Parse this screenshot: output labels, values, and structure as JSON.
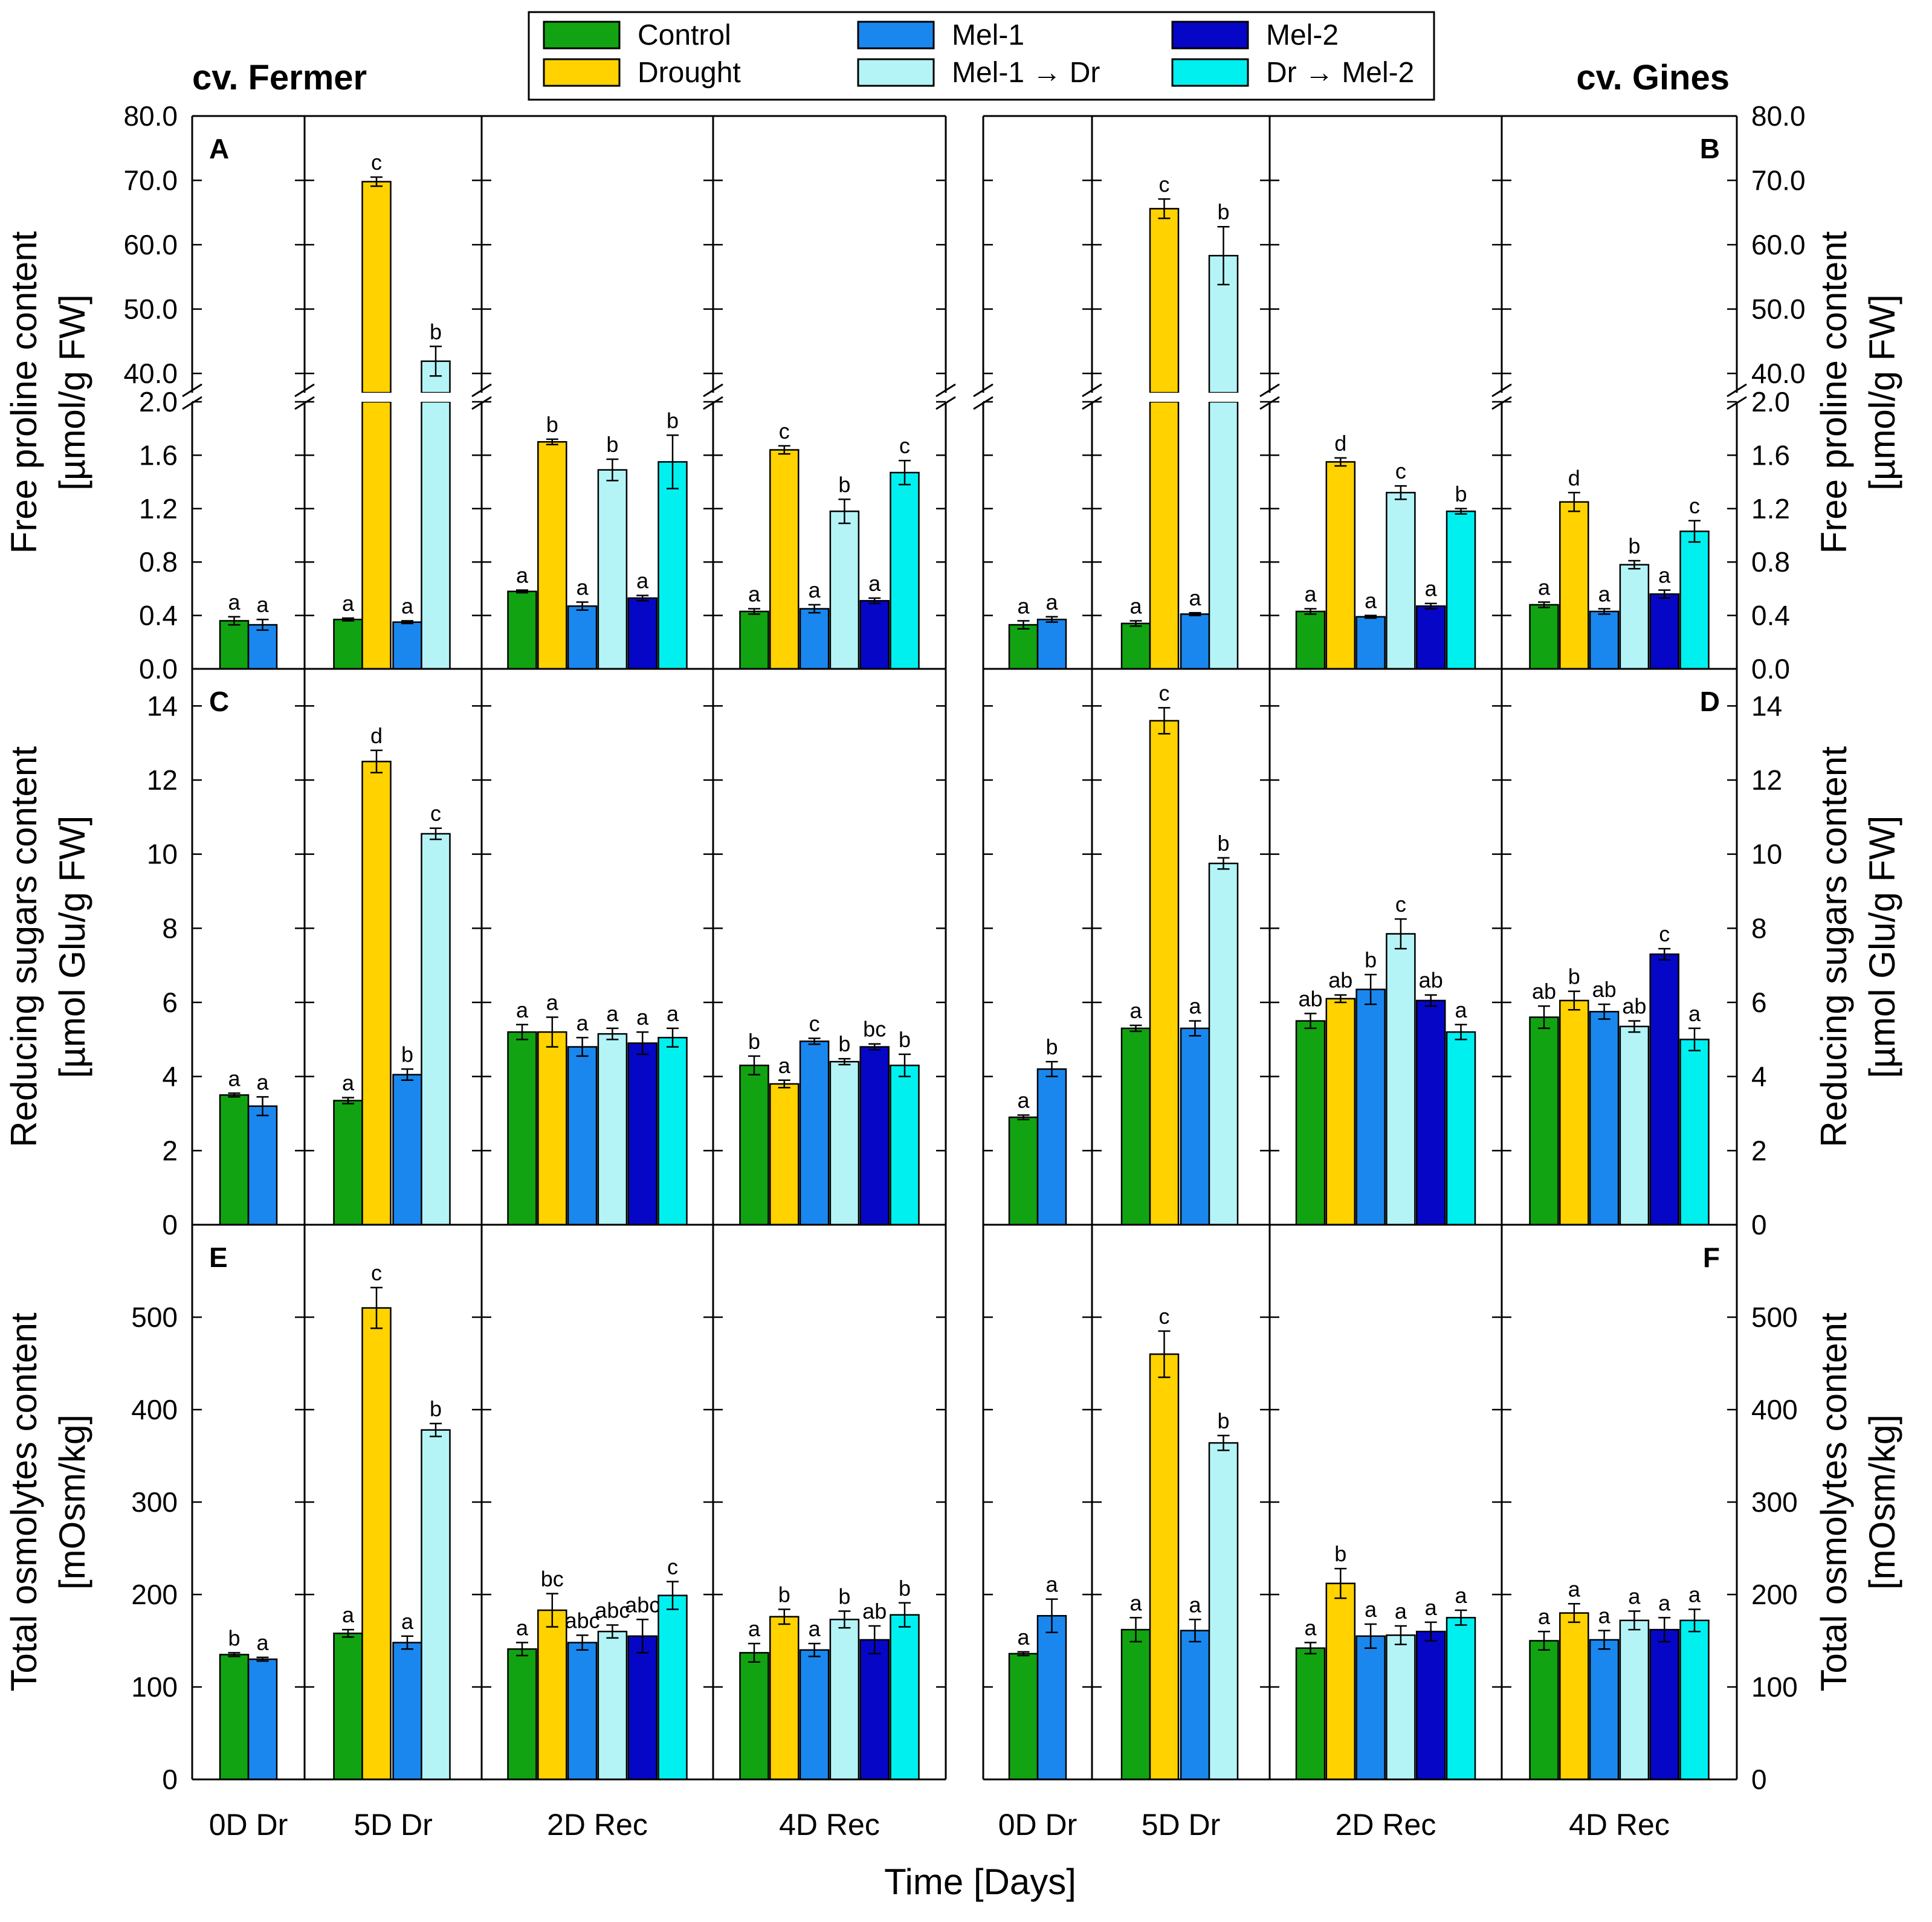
{
  "chart_data": {
    "type": "bar",
    "title": "",
    "xlabel": "Time [Days]",
    "groups": [
      "0D Dr",
      "5D Dr",
      "2D Rec",
      "4D Rec"
    ],
    "cultivars": [
      "cv. Fermer",
      "cv. Gines"
    ],
    "legend": [
      {
        "key": "Control",
        "label": "Control",
        "color": "#12a312"
      },
      {
        "key": "Drought",
        "label": "Drought",
        "color": "#ffd200"
      },
      {
        "key": "Mel1",
        "label": "Mel-1",
        "color": "#1a87ee"
      },
      {
        "key": "Mel1Dr",
        "label": "Mel-1 → Dr",
        "color": "#b4f4f7"
      },
      {
        "key": "Mel2",
        "label": "Mel-2",
        "color": "#0606c7"
      },
      {
        "key": "DrMel2",
        "label": "Dr → Mel-2",
        "color": "#00f0f0"
      }
    ],
    "rows": [
      {
        "ylabel_line1": "Free proline content",
        "ylabel_line2": "[µmol/g FW]",
        "broken_axis": true,
        "lower_ticks": [
          "0.0",
          "0.4",
          "0.8",
          "1.2",
          "1.6",
          "2.0"
        ],
        "upper_ticks": [
          "40.0",
          "50.0",
          "60.0",
          "70.0",
          "80.0"
        ],
        "lower_range": [
          0,
          2.0
        ],
        "upper_range": [
          37,
          80
        ]
      },
      {
        "ylabel_line1": "Reducing sugars content",
        "ylabel_line2": "[µmol Glu/g FW]",
        "broken_axis": false,
        "ticks": [
          "0",
          "2",
          "4",
          "6",
          "8",
          "10",
          "12",
          "14"
        ],
        "range": [
          0,
          15
        ]
      },
      {
        "ylabel_line1": "Total osmolytes content",
        "ylabel_line2": "[mOsm/kg]",
        "broken_axis": false,
        "ticks": [
          "0",
          "100",
          "200",
          "300",
          "400",
          "500"
        ],
        "range": [
          0,
          600
        ]
      }
    ],
    "panels": [
      {
        "letter": "A",
        "row": 0,
        "col": 0,
        "groups": [
          [
            [
              "Control",
              0.36,
              0.03,
              "a"
            ],
            [
              "Mel1",
              0.33,
              0.04,
              "a"
            ]
          ],
          [
            [
              "Control",
              0.37,
              0.01,
              "a"
            ],
            [
              "Drought",
              69.8,
              0.7,
              "c"
            ],
            [
              "Mel1",
              0.35,
              0.01,
              "a"
            ],
            [
              "Mel1Dr",
              41.9,
              2.3,
              "b"
            ]
          ],
          [
            [
              "Control",
              0.58,
              0.01,
              "a"
            ],
            [
              "Drought",
              1.7,
              0.02,
              "b"
            ],
            [
              "Mel1",
              0.47,
              0.03,
              "a"
            ],
            [
              "Mel1Dr",
              1.49,
              0.08,
              "b"
            ],
            [
              "Mel2",
              0.53,
              0.02,
              "a"
            ],
            [
              "DrMel2",
              1.55,
              0.2,
              "b"
            ]
          ],
          [
            [
              "Control",
              0.43,
              0.02,
              "a"
            ],
            [
              "Drought",
              1.64,
              0.03,
              "c"
            ],
            [
              "Mel1",
              0.45,
              0.03,
              "a"
            ],
            [
              "Mel1Dr",
              1.18,
              0.09,
              "b"
            ],
            [
              "Mel2",
              0.51,
              0.02,
              "a"
            ],
            [
              "DrMel2",
              1.47,
              0.09,
              "c"
            ]
          ]
        ]
      },
      {
        "letter": "B",
        "row": 0,
        "col": 1,
        "groups": [
          [
            [
              "Control",
              0.33,
              0.03,
              "a"
            ],
            [
              "Mel1",
              0.37,
              0.02,
              "a"
            ]
          ],
          [
            [
              "Control",
              0.34,
              0.02,
              "a"
            ],
            [
              "Drought",
              65.6,
              1.5,
              "c"
            ],
            [
              "Mel1",
              0.41,
              0.01,
              "a"
            ],
            [
              "Mel1Dr",
              58.3,
              4.5,
              "b"
            ]
          ],
          [
            [
              "Control",
              0.43,
              0.02,
              "a"
            ],
            [
              "Drought",
              1.55,
              0.03,
              "d"
            ],
            [
              "Mel1",
              0.39,
              0.01,
              "a"
            ],
            [
              "Mel1Dr",
              1.32,
              0.05,
              "c"
            ],
            [
              "Mel2",
              0.47,
              0.02,
              "a"
            ],
            [
              "DrMel2",
              1.18,
              0.02,
              "b"
            ]
          ],
          [
            [
              "Control",
              0.48,
              0.02,
              "a"
            ],
            [
              "Drought",
              1.25,
              0.07,
              "d"
            ],
            [
              "Mel1",
              0.43,
              0.02,
              "a"
            ],
            [
              "Mel1Dr",
              0.78,
              0.03,
              "b"
            ],
            [
              "Mel2",
              0.56,
              0.03,
              "a"
            ],
            [
              "DrMel2",
              1.03,
              0.08,
              "c"
            ]
          ]
        ]
      },
      {
        "letter": "C",
        "row": 1,
        "col": 0,
        "groups": [
          [
            [
              "Control",
              3.5,
              0.05,
              "a"
            ],
            [
              "Mel1",
              3.2,
              0.25,
              "a"
            ]
          ],
          [
            [
              "Control",
              3.35,
              0.08,
              "a"
            ],
            [
              "Drought",
              12.5,
              0.3,
              "d"
            ],
            [
              "Mel1",
              4.05,
              0.15,
              "b"
            ],
            [
              "Mel1Dr",
              10.55,
              0.15,
              "c"
            ]
          ],
          [
            [
              "Control",
              5.2,
              0.2,
              "a"
            ],
            [
              "Drought",
              5.2,
              0.4,
              "a"
            ],
            [
              "Mel1",
              4.8,
              0.25,
              "a"
            ],
            [
              "Mel1Dr",
              5.15,
              0.15,
              "a"
            ],
            [
              "Mel2",
              4.9,
              0.3,
              "a"
            ],
            [
              "DrMel2",
              5.05,
              0.25,
              "a"
            ]
          ],
          [
            [
              "Control",
              4.3,
              0.25,
              "b"
            ],
            [
              "Drought",
              3.8,
              0.1,
              "a"
            ],
            [
              "Mel1",
              4.95,
              0.08,
              "c"
            ],
            [
              "Mel1Dr",
              4.4,
              0.08,
              "b"
            ],
            [
              "Mel2",
              4.8,
              0.08,
              "bc"
            ],
            [
              "DrMel2",
              4.3,
              0.3,
              "b"
            ]
          ]
        ]
      },
      {
        "letter": "D",
        "row": 1,
        "col": 1,
        "groups": [
          [
            [
              "Control",
              2.9,
              0.06,
              "a"
            ],
            [
              "Mel1",
              4.2,
              0.2,
              "b"
            ]
          ],
          [
            [
              "Control",
              5.3,
              0.08,
              "a"
            ],
            [
              "Drought",
              13.6,
              0.35,
              "c"
            ],
            [
              "Mel1",
              5.3,
              0.2,
              "a"
            ],
            [
              "Mel1Dr",
              9.75,
              0.15,
              "b"
            ]
          ],
          [
            [
              "Control",
              5.5,
              0.2,
              "ab"
            ],
            [
              "Drought",
              6.1,
              0.1,
              "ab"
            ],
            [
              "Mel1",
              6.35,
              0.4,
              "b"
            ],
            [
              "Mel1Dr",
              7.85,
              0.4,
              "c"
            ],
            [
              "Mel2",
              6.05,
              0.15,
              "ab"
            ],
            [
              "DrMel2",
              5.2,
              0.2,
              "a"
            ]
          ],
          [
            [
              "Control",
              5.6,
              0.3,
              "ab"
            ],
            [
              "Drought",
              6.05,
              0.25,
              "b"
            ],
            [
              "Mel1",
              5.75,
              0.2,
              "ab"
            ],
            [
              "Mel1Dr",
              5.35,
              0.15,
              "ab"
            ],
            [
              "Mel2",
              7.3,
              0.15,
              "c"
            ],
            [
              "DrMel2",
              5.0,
              0.3,
              "a"
            ]
          ]
        ]
      },
      {
        "letter": "E",
        "row": 2,
        "col": 0,
        "groups": [
          [
            [
              "Control",
              135,
              2,
              "b"
            ],
            [
              "Mel1",
              130,
              2,
              "a"
            ]
          ],
          [
            [
              "Control",
              158,
              4,
              "a"
            ],
            [
              "Drought",
              510,
              22,
              "c"
            ],
            [
              "Mel1",
              148,
              7,
              "a"
            ],
            [
              "Mel1Dr",
              378,
              7,
              "b"
            ]
          ],
          [
            [
              "Control",
              141,
              7,
              "a"
            ],
            [
              "Drought",
              183,
              18,
              "bc"
            ],
            [
              "Mel1",
              148,
              8,
              "abc"
            ],
            [
              "Mel1Dr",
              160,
              7,
              "abc"
            ],
            [
              "Mel2",
              155,
              18,
              "abc"
            ],
            [
              "DrMel2",
              199,
              15,
              "c"
            ]
          ],
          [
            [
              "Control",
              137,
              10,
              "a"
            ],
            [
              "Drought",
              176,
              8,
              "b"
            ],
            [
              "Mel1",
              140,
              7,
              "a"
            ],
            [
              "Mel1Dr",
              173,
              9,
              "b"
            ],
            [
              "Mel2",
              151,
              15,
              "ab"
            ],
            [
              "DrMel2",
              178,
              13,
              "b"
            ]
          ]
        ]
      },
      {
        "letter": "F",
        "row": 2,
        "col": 1,
        "groups": [
          [
            [
              "Control",
              136,
              2,
              "a"
            ],
            [
              "Mel1",
              177,
              18,
              "a"
            ]
          ],
          [
            [
              "Control",
              162,
              13,
              "a"
            ],
            [
              "Drought",
              460,
              25,
              "c"
            ],
            [
              "Mel1",
              161,
              12,
              "a"
            ],
            [
              "Mel1Dr",
              364,
              8,
              "b"
            ]
          ],
          [
            [
              "Control",
              142,
              6,
              "a"
            ],
            [
              "Drought",
              212,
              16,
              "b"
            ],
            [
              "Mel1",
              155,
              13,
              "a"
            ],
            [
              "Mel1Dr",
              156,
              10,
              "a"
            ],
            [
              "Mel2",
              160,
              10,
              "a"
            ],
            [
              "DrMel2",
              175,
              8,
              "a"
            ]
          ],
          [
            [
              "Control",
              150,
              10,
              "a"
            ],
            [
              "Drought",
              180,
              10,
              "a"
            ],
            [
              "Mel1",
              151,
              10,
              "a"
            ],
            [
              "Mel1Dr",
              172,
              10,
              "a"
            ],
            [
              "Mel2",
              162,
              13,
              "a"
            ],
            [
              "DrMel2",
              172,
              12,
              "a"
            ]
          ]
        ]
      }
    ]
  }
}
